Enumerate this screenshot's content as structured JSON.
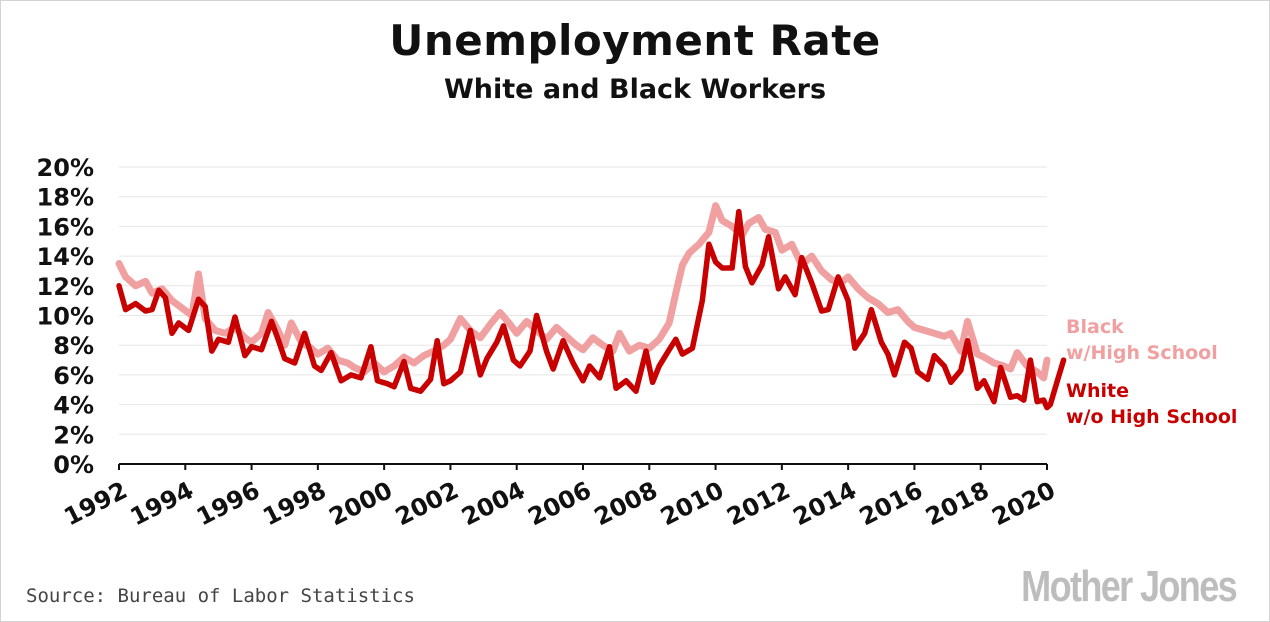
{
  "title": "Unemployment Rate",
  "subtitle": "White and Black Workers",
  "source": "Source: Bureau of Labor Statistics",
  "logo": "Mother Jones",
  "chart_data": {
    "type": "line",
    "title": "Unemployment Rate",
    "subtitle": "White and Black Workers",
    "xlabel": "",
    "ylabel": "",
    "xlim": [
      1992,
      2020
    ],
    "ylim": [
      0,
      20
    ],
    "grid": true,
    "legend": "right",
    "x_ticks": [
      "1992",
      "1994",
      "1996",
      "1998",
      "2000",
      "2002",
      "2004",
      "2006",
      "2008",
      "2010",
      "2012",
      "2014",
      "2016",
      "2018",
      "2020"
    ],
    "y_ticks": [
      "0%",
      "2%",
      "4%",
      "6%",
      "8%",
      "10%",
      "12%",
      "14%",
      "16%",
      "18%",
      "20%"
    ],
    "series": [
      {
        "name": "Black w/High School",
        "legend_lines": [
          "Black",
          "w/High School"
        ],
        "color": "#f0a0a0",
        "points": [
          [
            1992.0,
            13.5
          ],
          [
            1992.2,
            12.6
          ],
          [
            1992.5,
            12.0
          ],
          [
            1992.8,
            12.3
          ],
          [
            1993.0,
            11.5
          ],
          [
            1993.3,
            11.8
          ],
          [
            1993.6,
            11.0
          ],
          [
            1993.9,
            10.5
          ],
          [
            1994.2,
            10.0
          ],
          [
            1994.4,
            12.8
          ],
          [
            1994.6,
            9.8
          ],
          [
            1994.9,
            9.0
          ],
          [
            1995.2,
            8.8
          ],
          [
            1995.5,
            9.2
          ],
          [
            1995.8,
            8.5
          ],
          [
            1996.0,
            8.2
          ],
          [
            1996.3,
            8.8
          ],
          [
            1996.5,
            10.2
          ],
          [
            1996.8,
            9.0
          ],
          [
            1997.0,
            8.0
          ],
          [
            1997.2,
            9.5
          ],
          [
            1997.5,
            8.2
          ],
          [
            1997.8,
            7.8
          ],
          [
            1998.0,
            7.4
          ],
          [
            1998.3,
            7.8
          ],
          [
            1998.6,
            7.0
          ],
          [
            1998.9,
            6.8
          ],
          [
            1999.1,
            6.5
          ],
          [
            1999.4,
            6.2
          ],
          [
            1999.7,
            6.8
          ],
          [
            2000.0,
            6.2
          ],
          [
            2000.3,
            6.6
          ],
          [
            2000.6,
            7.2
          ],
          [
            2000.9,
            6.8
          ],
          [
            2001.2,
            7.3
          ],
          [
            2001.5,
            7.6
          ],
          [
            2001.8,
            8.0
          ],
          [
            2002.0,
            8.4
          ],
          [
            2002.3,
            9.8
          ],
          [
            2002.6,
            9.0
          ],
          [
            2002.9,
            8.5
          ],
          [
            2003.2,
            9.4
          ],
          [
            2003.5,
            10.2
          ],
          [
            2003.8,
            9.4
          ],
          [
            2004.0,
            8.8
          ],
          [
            2004.3,
            9.6
          ],
          [
            2004.6,
            9.0
          ],
          [
            2004.9,
            8.4
          ],
          [
            2005.2,
            9.2
          ],
          [
            2005.5,
            8.6
          ],
          [
            2005.8,
            8.0
          ],
          [
            2006.0,
            7.7
          ],
          [
            2006.3,
            8.5
          ],
          [
            2006.6,
            8.0
          ],
          [
            2006.9,
            7.6
          ],
          [
            2007.1,
            8.8
          ],
          [
            2007.4,
            7.6
          ],
          [
            2007.7,
            8.0
          ],
          [
            2008.0,
            7.8
          ],
          [
            2008.3,
            8.4
          ],
          [
            2008.6,
            9.5
          ],
          [
            2008.8,
            11.5
          ],
          [
            2009.0,
            13.4
          ],
          [
            2009.2,
            14.2
          ],
          [
            2009.5,
            14.8
          ],
          [
            2009.8,
            15.6
          ],
          [
            2010.0,
            17.4
          ],
          [
            2010.2,
            16.4
          ],
          [
            2010.5,
            16.0
          ],
          [
            2010.8,
            15.4
          ],
          [
            2011.0,
            16.2
          ],
          [
            2011.3,
            16.6
          ],
          [
            2011.5,
            15.8
          ],
          [
            2011.8,
            15.6
          ],
          [
            2012.0,
            14.4
          ],
          [
            2012.3,
            14.8
          ],
          [
            2012.6,
            13.4
          ],
          [
            2012.9,
            14.0
          ],
          [
            2013.2,
            13.0
          ],
          [
            2013.5,
            12.4
          ],
          [
            2013.8,
            12.2
          ],
          [
            2014.0,
            12.6
          ],
          [
            2014.3,
            11.8
          ],
          [
            2014.6,
            11.2
          ],
          [
            2014.9,
            10.8
          ],
          [
            2015.2,
            10.2
          ],
          [
            2015.5,
            10.4
          ],
          [
            2015.8,
            9.6
          ],
          [
            2016.0,
            9.2
          ],
          [
            2016.3,
            9.0
          ],
          [
            2016.6,
            8.8
          ],
          [
            2016.9,
            8.6
          ],
          [
            2017.1,
            8.8
          ],
          [
            2017.4,
            7.6
          ],
          [
            2017.6,
            9.6
          ],
          [
            2017.9,
            7.4
          ],
          [
            2018.1,
            7.2
          ],
          [
            2018.4,
            6.8
          ],
          [
            2018.7,
            6.6
          ],
          [
            2018.9,
            6.4
          ],
          [
            2019.1,
            7.5
          ],
          [
            2019.4,
            6.6
          ],
          [
            2019.7,
            6.2
          ],
          [
            2019.9,
            5.8
          ],
          [
            2020.0,
            7.0
          ]
        ]
      },
      {
        "name": "White w/o High School",
        "legend_lines": [
          "White",
          "w/o High School"
        ],
        "color": "#c80000",
        "points": [
          [
            1992.0,
            12.0
          ],
          [
            1992.2,
            10.4
          ],
          [
            1992.5,
            10.8
          ],
          [
            1992.8,
            10.3
          ],
          [
            1993.0,
            10.4
          ],
          [
            1993.2,
            11.7
          ],
          [
            1993.4,
            11.2
          ],
          [
            1993.6,
            8.8
          ],
          [
            1993.8,
            9.5
          ],
          [
            1994.1,
            9.0
          ],
          [
            1994.4,
            11.1
          ],
          [
            1994.6,
            10.6
          ],
          [
            1994.8,
            7.6
          ],
          [
            1995.0,
            8.4
          ],
          [
            1995.3,
            8.2
          ],
          [
            1995.5,
            9.9
          ],
          [
            1995.8,
            7.3
          ],
          [
            1996.0,
            7.9
          ],
          [
            1996.3,
            7.7
          ],
          [
            1996.6,
            9.6
          ],
          [
            1996.8,
            8.4
          ],
          [
            1997.0,
            7.1
          ],
          [
            1997.3,
            6.8
          ],
          [
            1997.6,
            8.8
          ],
          [
            1997.9,
            6.6
          ],
          [
            1998.1,
            6.3
          ],
          [
            1998.4,
            7.5
          ],
          [
            1998.7,
            5.6
          ],
          [
            1999.0,
            6.0
          ],
          [
            1999.3,
            5.8
          ],
          [
            1999.6,
            7.9
          ],
          [
            1999.8,
            5.6
          ],
          [
            2000.1,
            5.4
          ],
          [
            2000.3,
            5.2
          ],
          [
            2000.6,
            6.9
          ],
          [
            2000.8,
            5.1
          ],
          [
            2001.1,
            4.9
          ],
          [
            2001.4,
            5.7
          ],
          [
            2001.6,
            8.3
          ],
          [
            2001.8,
            5.4
          ],
          [
            2002.0,
            5.6
          ],
          [
            2002.3,
            6.2
          ],
          [
            2002.6,
            9.0
          ],
          [
            2002.9,
            6.0
          ],
          [
            2003.1,
            7.1
          ],
          [
            2003.4,
            8.2
          ],
          [
            2003.6,
            9.3
          ],
          [
            2003.9,
            7.0
          ],
          [
            2004.1,
            6.6
          ],
          [
            2004.4,
            7.6
          ],
          [
            2004.6,
            10.0
          ],
          [
            2004.9,
            7.6
          ],
          [
            2005.1,
            6.4
          ],
          [
            2005.4,
            8.3
          ],
          [
            2005.7,
            6.8
          ],
          [
            2006.0,
            5.6
          ],
          [
            2006.2,
            6.6
          ],
          [
            2006.5,
            5.8
          ],
          [
            2006.8,
            7.9
          ],
          [
            2007.0,
            5.1
          ],
          [
            2007.3,
            5.6
          ],
          [
            2007.6,
            4.9
          ],
          [
            2007.9,
            7.6
          ],
          [
            2008.1,
            5.5
          ],
          [
            2008.3,
            6.6
          ],
          [
            2008.6,
            7.7
          ],
          [
            2008.8,
            8.4
          ],
          [
            2009.0,
            7.4
          ],
          [
            2009.3,
            7.8
          ],
          [
            2009.6,
            11.0
          ],
          [
            2009.8,
            14.8
          ],
          [
            2010.0,
            13.6
          ],
          [
            2010.2,
            13.2
          ],
          [
            2010.5,
            13.2
          ],
          [
            2010.7,
            17.0
          ],
          [
            2010.9,
            13.3
          ],
          [
            2011.1,
            12.2
          ],
          [
            2011.4,
            13.4
          ],
          [
            2011.6,
            15.3
          ],
          [
            2011.9,
            11.8
          ],
          [
            2012.1,
            12.6
          ],
          [
            2012.4,
            11.4
          ],
          [
            2012.6,
            13.9
          ],
          [
            2012.9,
            12.2
          ],
          [
            2013.2,
            10.3
          ],
          [
            2013.4,
            10.4
          ],
          [
            2013.7,
            12.6
          ],
          [
            2014.0,
            11.0
          ],
          [
            2014.2,
            7.8
          ],
          [
            2014.5,
            8.8
          ],
          [
            2014.7,
            10.4
          ],
          [
            2015.0,
            8.2
          ],
          [
            2015.2,
            7.4
          ],
          [
            2015.4,
            6.0
          ],
          [
            2015.7,
            8.2
          ],
          [
            2015.9,
            7.8
          ],
          [
            2016.1,
            6.2
          ],
          [
            2016.4,
            5.7
          ],
          [
            2016.6,
            7.3
          ],
          [
            2016.9,
            6.6
          ],
          [
            2017.1,
            5.5
          ],
          [
            2017.4,
            6.3
          ],
          [
            2017.6,
            8.3
          ],
          [
            2017.9,
            5.1
          ],
          [
            2018.1,
            5.6
          ],
          [
            2018.4,
            4.2
          ],
          [
            2018.6,
            6.5
          ],
          [
            2018.9,
            4.5
          ],
          [
            2019.1,
            4.6
          ],
          [
            2019.3,
            4.3
          ],
          [
            2019.5,
            7.0
          ],
          [
            2019.7,
            4.2
          ],
          [
            2019.9,
            4.3
          ],
          [
            2020.0,
            3.8
          ],
          [
            2020.1,
            4.0
          ],
          [
            2020.3,
            5.5
          ],
          [
            2020.5,
            7.0
          ]
        ]
      }
    ]
  }
}
